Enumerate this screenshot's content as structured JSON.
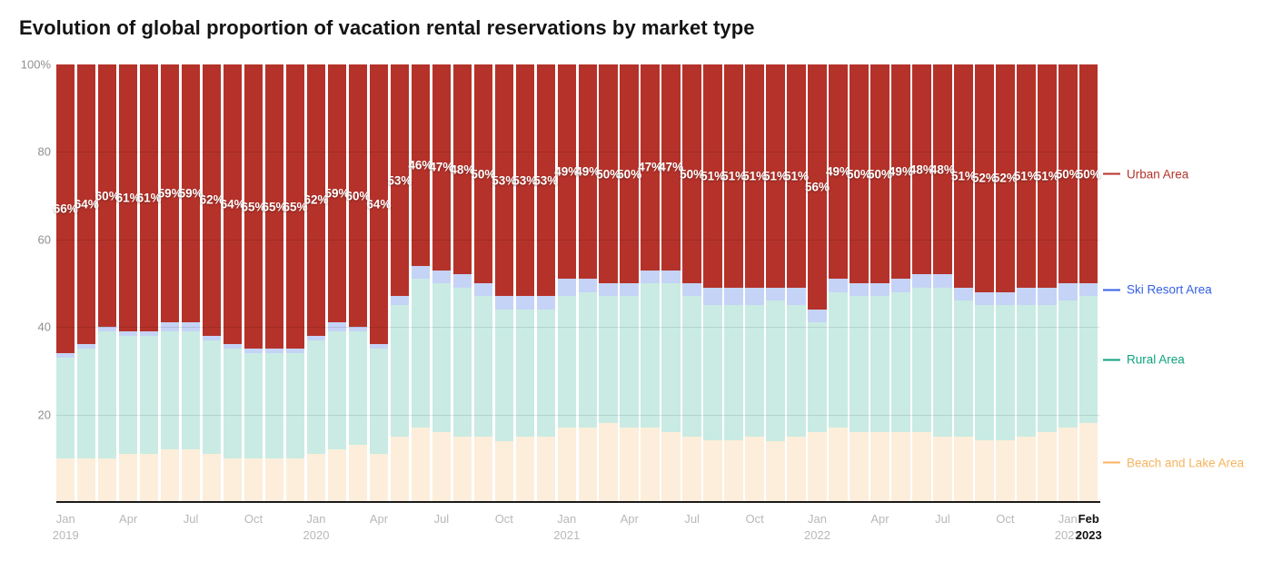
{
  "title": "Evolution of global proportion of vacation rental reservations by market type",
  "colors": {
    "background": "#ffffff",
    "axis_baseline": "#1b1b1b",
    "axis_text": "#8f8f8f",
    "x_axis_text": "#b8b8b8",
    "x_axis_current_text": "#111111",
    "data_label_text": "#ffffff"
  },
  "chart_data": {
    "type": "bar",
    "variant": "stacked-100-percent",
    "title": "Evolution of global proportion of vacation rental reservations by market type",
    "xlabel": "",
    "ylabel": "",
    "ylim": [
      0,
      100
    ],
    "grid": "horizontal",
    "gridlines": [
      20,
      40,
      60,
      80
    ],
    "legend_position": "right",
    "data_label_suffix": "%",
    "labeled_series": "Urban Area",
    "categories": [
      "Jan 2019",
      "Feb 2019",
      "Mar 2019",
      "Apr 2019",
      "May 2019",
      "Jun 2019",
      "Jul 2019",
      "Aug 2019",
      "Sep 2019",
      "Oct 2019",
      "Nov 2019",
      "Dec 2019",
      "Jan 2020",
      "Feb 2020",
      "Mar 2020",
      "Apr 2020",
      "May 2020",
      "Jun 2020",
      "Jul 2020",
      "Aug 2020",
      "Sep 2020",
      "Oct 2020",
      "Nov 2020",
      "Dec 2020",
      "Jan 2021",
      "Feb 2021",
      "Mar 2021",
      "Apr 2021",
      "May 2021",
      "Jun 2021",
      "Jul 2021",
      "Aug 2021",
      "Sep 2021",
      "Oct 2021",
      "Nov 2021",
      "Dec 2021",
      "Jan 2022",
      "Feb 2022",
      "Mar 2022",
      "Apr 2022",
      "May 2022",
      "Jun 2022",
      "Jul 2022",
      "Aug 2022",
      "Sep 2022",
      "Oct 2022",
      "Nov 2022",
      "Dec 2022",
      "Jan 2023",
      "Feb 2023"
    ],
    "series": [
      {
        "name": "Beach and Lake Area",
        "color": "#FCEEDA",
        "legend_color": "#F6B45F",
        "values": [
          10,
          10,
          10,
          11,
          11,
          12,
          12,
          11,
          10,
          10,
          10,
          10,
          11,
          12,
          13,
          11,
          15,
          17,
          16,
          15,
          15,
          14,
          15,
          15,
          17,
          17,
          18,
          17,
          17,
          16,
          15,
          14,
          14,
          15,
          14,
          15,
          16,
          17,
          16,
          16,
          16,
          16,
          15,
          15,
          14,
          14,
          15,
          16,
          17,
          18
        ]
      },
      {
        "name": "Rural Area",
        "color": "#C9EBE3",
        "legend_color": "#0FA37E",
        "values": [
          23,
          25,
          29,
          27,
          27,
          27,
          27,
          26,
          25,
          24,
          24,
          24,
          26,
          27,
          26,
          24,
          30,
          34,
          34,
          34,
          32,
          30,
          29,
          29,
          30,
          31,
          29,
          30,
          33,
          34,
          32,
          31,
          31,
          30,
          32,
          30,
          25,
          31,
          31,
          31,
          32,
          33,
          34,
          31,
          31,
          31,
          30,
          29,
          29,
          29
        ]
      },
      {
        "name": "Ski Resort Area",
        "color": "#C5D3F6",
        "legend_color": "#3560E4",
        "values": [
          1,
          1,
          1,
          1,
          1,
          2,
          2,
          1,
          1,
          1,
          1,
          1,
          1,
          2,
          1,
          1,
          2,
          3,
          3,
          3,
          3,
          3,
          3,
          3,
          4,
          3,
          3,
          3,
          3,
          3,
          3,
          4,
          4,
          4,
          3,
          4,
          3,
          3,
          3,
          3,
          3,
          3,
          3,
          3,
          3,
          3,
          4,
          4,
          4,
          3
        ]
      },
      {
        "name": "Urban Area",
        "color": "#B5322A",
        "legend_color": "#B5322A",
        "data_labels": true,
        "values": [
          66,
          64,
          60,
          61,
          61,
          59,
          59,
          62,
          64,
          65,
          65,
          65,
          62,
          59,
          60,
          64,
          53,
          46,
          47,
          48,
          50,
          53,
          53,
          53,
          49,
          49,
          50,
          50,
          47,
          47,
          50,
          51,
          51,
          51,
          51,
          51,
          56,
          49,
          50,
          50,
          49,
          48,
          48,
          51,
          52,
          52,
          51,
          51,
          50,
          50
        ]
      }
    ],
    "yticks": [
      {
        "value": 100,
        "label": "100%"
      },
      {
        "value": 80,
        "label": "80"
      },
      {
        "value": 60,
        "label": "60"
      },
      {
        "value": 40,
        "label": "40"
      },
      {
        "value": 20,
        "label": "20"
      }
    ],
    "xticks": [
      {
        "index": 0,
        "month": "Jan",
        "year": "2019"
      },
      {
        "index": 3,
        "month": "Apr",
        "year": ""
      },
      {
        "index": 6,
        "month": "Jul",
        "year": ""
      },
      {
        "index": 9,
        "month": "Oct",
        "year": ""
      },
      {
        "index": 12,
        "month": "Jan",
        "year": "2020"
      },
      {
        "index": 15,
        "month": "Apr",
        "year": ""
      },
      {
        "index": 18,
        "month": "Jul",
        "year": ""
      },
      {
        "index": 21,
        "month": "Oct",
        "year": ""
      },
      {
        "index": 24,
        "month": "Jan",
        "year": "2021"
      },
      {
        "index": 27,
        "month": "Apr",
        "year": ""
      },
      {
        "index": 30,
        "month": "Jul",
        "year": ""
      },
      {
        "index": 33,
        "month": "Oct",
        "year": ""
      },
      {
        "index": 36,
        "month": "Jan",
        "year": "2022"
      },
      {
        "index": 39,
        "month": "Apr",
        "year": ""
      },
      {
        "index": 42,
        "month": "Jul",
        "year": ""
      },
      {
        "index": 45,
        "month": "Oct",
        "year": ""
      },
      {
        "index": 48,
        "month": "Jan",
        "year": "2023"
      },
      {
        "index": 49,
        "month": "Feb",
        "year": "2023",
        "bold": true
      }
    ]
  }
}
